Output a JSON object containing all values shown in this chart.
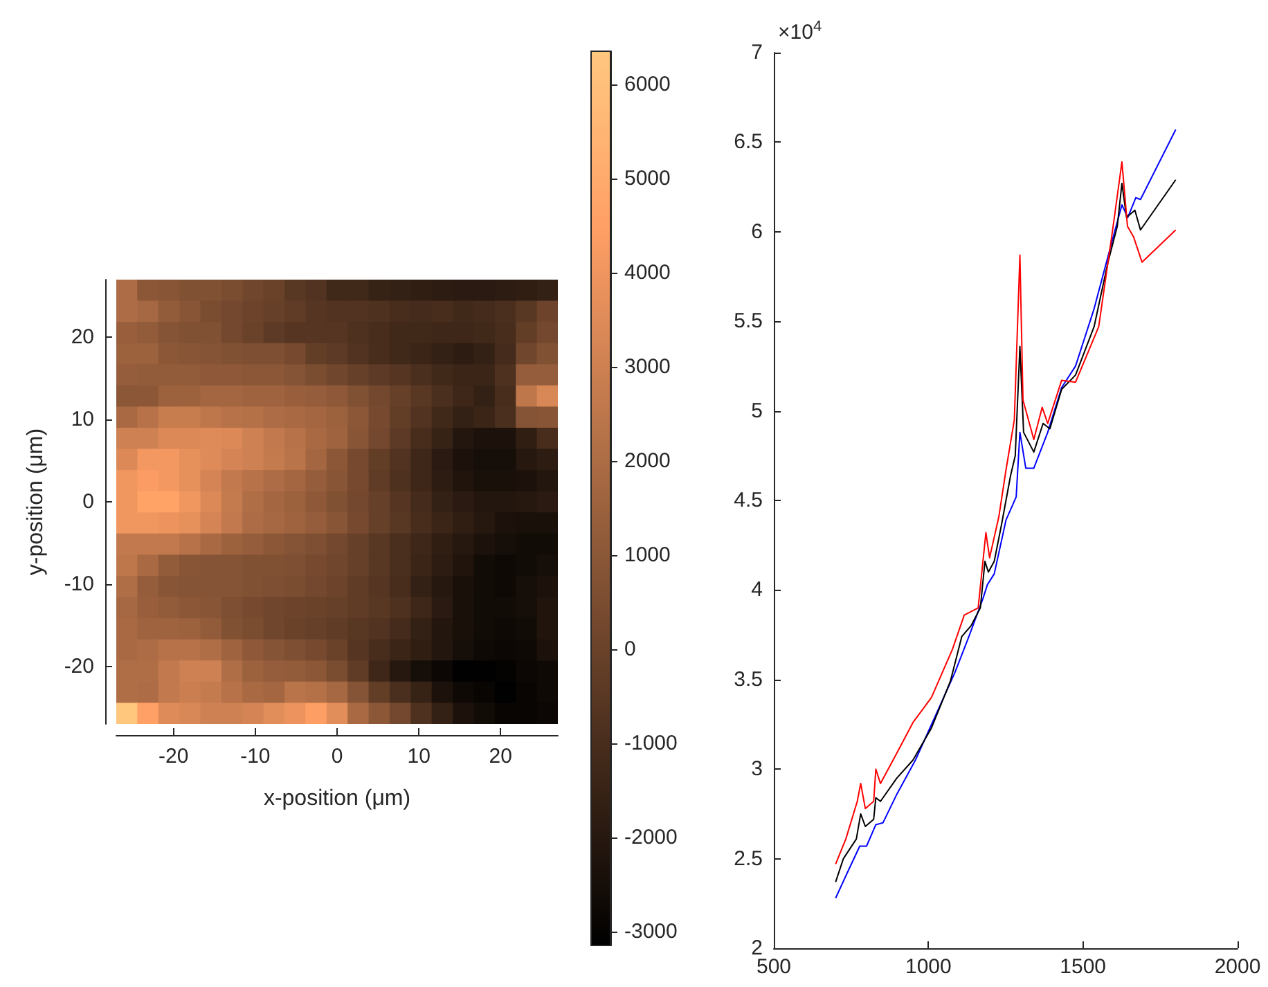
{
  "chart_data": [
    {
      "type": "heatmap",
      "xlabel": "x-position (μm)",
      "ylabel": "y-position (μm)",
      "xlim": [
        -27,
        27
      ],
      "ylim": [
        -27,
        27
      ],
      "xticks": [
        -20,
        -10,
        0,
        10,
        20
      ],
      "yticks": [
        -20,
        -10,
        0,
        10,
        20
      ],
      "clim": [
        -3150,
        6350
      ],
      "cticks": [
        -3000,
        -2000,
        -1000,
        0,
        1000,
        2000,
        3000,
        4000,
        5000,
        6000
      ],
      "cells": [
        [
          2000,
          1000,
          900,
          700,
          700,
          500,
          200,
          0,
          -500,
          -700,
          -1200,
          -1200,
          -1500,
          -1600,
          -1700,
          -1800,
          -1900,
          -1900,
          -1800,
          -1700,
          -1600
        ],
        [
          2000,
          1800,
          1200,
          900,
          500,
          300,
          100,
          -100,
          -300,
          -600,
          -700,
          -700,
          -800,
          -1000,
          -1100,
          -1000,
          -1200,
          -1100,
          -900,
          -500,
          100
        ],
        [
          1400,
          1200,
          800,
          700,
          700,
          300,
          0,
          -400,
          -600,
          -600,
          -600,
          -800,
          -1000,
          -1200,
          -1200,
          -1300,
          -1300,
          -1200,
          -1000,
          -200,
          300
        ],
        [
          1500,
          1500,
          1000,
          900,
          800,
          700,
          600,
          600,
          400,
          -200,
          -400,
          -700,
          -1000,
          -1200,
          -1400,
          -1600,
          -1800,
          -1600,
          -1100,
          200,
          700
        ],
        [
          1300,
          1200,
          1200,
          1200,
          1100,
          1100,
          1000,
          1000,
          800,
          500,
          200,
          -100,
          -400,
          -600,
          -900,
          -1200,
          -1400,
          -1400,
          -800,
          1300,
          1300
        ],
        [
          1000,
          1000,
          1500,
          1500,
          1700,
          1700,
          1600,
          1600,
          1400,
          1300,
          1100,
          700,
          300,
          -100,
          -500,
          -900,
          -1300,
          -1600,
          -1000,
          2500,
          3300
        ],
        [
          1900,
          2300,
          2800,
          2800,
          2500,
          2300,
          2200,
          2000,
          1900,
          1700,
          1500,
          1000,
          400,
          -200,
          -700,
          -1200,
          -1600,
          -1400,
          -900,
          800,
          900
        ],
        [
          3000,
          3000,
          3400,
          3400,
          3500,
          3400,
          3000,
          2600,
          2300,
          1900,
          1600,
          900,
          300,
          -400,
          -1000,
          -1500,
          -2100,
          -2300,
          -2300,
          -1700,
          -1000
        ],
        [
          3400,
          4100,
          4100,
          3700,
          3500,
          3200,
          3000,
          2700,
          2400,
          1700,
          1000,
          400,
          -200,
          -700,
          -1300,
          -1900,
          -2300,
          -2500,
          -2500,
          -2000,
          -1800
        ],
        [
          4000,
          4300,
          4100,
          3700,
          3200,
          2600,
          2300,
          2000,
          1700,
          1300,
          900,
          400,
          -300,
          -800,
          -1300,
          -1800,
          -2200,
          -2400,
          -2400,
          -2300,
          -2100
        ],
        [
          4000,
          4600,
          4600,
          4000,
          3400,
          2700,
          2100,
          1700,
          1500,
          1100,
          700,
          300,
          -100,
          -600,
          -1100,
          -1600,
          -1900,
          -2100,
          -2100,
          -2000,
          -1900
        ],
        [
          4000,
          4000,
          3900,
          3700,
          3200,
          2600,
          2000,
          1800,
          1600,
          1300,
          900,
          400,
          -100,
          -500,
          -1000,
          -1400,
          -1700,
          -2000,
          -2300,
          -2400,
          -2400
        ],
        [
          2600,
          2600,
          2600,
          2300,
          1900,
          1500,
          1300,
          1000,
          800,
          600,
          300,
          -100,
          -500,
          -900,
          -1300,
          -1700,
          -2000,
          -2300,
          -2500,
          -2600,
          -2600
        ],
        [
          2500,
          1900,
          1200,
          900,
          800,
          800,
          700,
          700,
          600,
          400,
          200,
          -100,
          -500,
          -900,
          -1400,
          -1800,
          -2200,
          -2600,
          -2700,
          -2600,
          -2500
        ],
        [
          2100,
          1300,
          900,
          800,
          800,
          800,
          700,
          600,
          500,
          300,
          100,
          -300,
          -600,
          -1000,
          -1600,
          -2000,
          -2400,
          -2600,
          -2700,
          -2500,
          -2300
        ],
        [
          1800,
          1400,
          1200,
          1000,
          900,
          600,
          400,
          200,
          100,
          0,
          -100,
          -300,
          -500,
          -800,
          -1300,
          -1900,
          -2400,
          -2600,
          -2600,
          -2500,
          -2200
        ],
        [
          1900,
          1600,
          1600,
          1500,
          1200,
          700,
          500,
          200,
          0,
          -100,
          -300,
          -500,
          -700,
          -1100,
          -1600,
          -2100,
          -2400,
          -2600,
          -2700,
          -2600,
          -2200
        ],
        [
          1900,
          2000,
          2300,
          2300,
          2100,
          1600,
          1100,
          800,
          600,
          400,
          0,
          -600,
          -1000,
          -1400,
          -1700,
          -2100,
          -2500,
          -2700,
          -2800,
          -2700,
          -2300
        ],
        [
          2100,
          2100,
          2600,
          3000,
          3000,
          2100,
          1500,
          1300,
          1200,
          1000,
          500,
          -300,
          -1300,
          -2000,
          -2500,
          -2800,
          -3100,
          -3100,
          -3000,
          -2800,
          -2700
        ],
        [
          2100,
          2000,
          2600,
          2900,
          2700,
          2300,
          1900,
          1700,
          2400,
          2200,
          1800,
          800,
          -200,
          -900,
          -1500,
          -2300,
          -2700,
          -2900,
          -3100,
          -2900,
          -2700
        ],
        [
          6300,
          4500,
          3500,
          3300,
          3000,
          3000,
          3200,
          3600,
          3900,
          4400,
          3600,
          1900,
          1000,
          300,
          -800,
          -1600,
          -2300,
          -2600,
          -2900,
          -2900,
          -2800
        ]
      ]
    },
    {
      "type": "line",
      "xlim": [
        500,
        2000
      ],
      "xticks": [
        500,
        1000,
        1500,
        2000
      ],
      "ylim": [
        2,
        7
      ],
      "yticks": [
        2,
        2.5,
        3,
        3.5,
        4,
        4.5,
        5,
        5.5,
        6,
        6.5,
        7
      ],
      "annotations": [
        "×10$^{4}$"
      ],
      "series": [
        {
          "color": "#0000ff",
          "x": [
            700,
            740,
            778,
            800,
            830,
            853,
            898,
            958,
            1026,
            1086,
            1131,
            1176,
            1191,
            1213,
            1251,
            1284,
            1296,
            1315,
            1341,
            1386,
            1431,
            1476,
            1536,
            1596,
            1626,
            1645,
            1671,
            1686,
            1800
          ],
          "values": [
            2.28,
            2.43,
            2.57,
            2.57,
            2.69,
            2.7,
            2.86,
            3.05,
            3.31,
            3.54,
            3.74,
            3.95,
            4.03,
            4.09,
            4.39,
            4.52,
            4.88,
            4.68,
            4.68,
            4.88,
            5.13,
            5.25,
            5.57,
            5.96,
            6.15,
            6.08,
            6.19,
            6.18,
            6.57
          ]
        },
        {
          "color": "#000000",
          "x": [
            700,
            725,
            767,
            781,
            796,
            823,
            830,
            845,
            898,
            950,
            1010,
            1071,
            1108,
            1138,
            1168,
            1183,
            1194,
            1213,
            1236,
            1266,
            1281,
            1296,
            1308,
            1341,
            1371,
            1393,
            1431,
            1476,
            1536,
            1581,
            1611,
            1626,
            1641,
            1668,
            1686,
            1800
          ],
          "values": [
            2.37,
            2.5,
            2.61,
            2.75,
            2.68,
            2.72,
            2.84,
            2.82,
            2.95,
            3.05,
            3.23,
            3.49,
            3.74,
            3.8,
            3.9,
            4.16,
            4.1,
            4.16,
            4.36,
            4.64,
            4.75,
            5.36,
            4.88,
            4.77,
            4.93,
            4.9,
            5.12,
            5.2,
            5.47,
            5.83,
            6.03,
            6.27,
            6.08,
            6.12,
            6.01,
            6.29
          ]
        },
        {
          "color": "#ff0000",
          "x": [
            700,
            733,
            770,
            781,
            796,
            823,
            830,
            845,
            898,
            950,
            1010,
            1078,
            1116,
            1161,
            1186,
            1198,
            1228,
            1251,
            1278,
            1296,
            1306,
            1341,
            1368,
            1386,
            1431,
            1476,
            1551,
            1596,
            1626,
            1644,
            1664,
            1691,
            1800
          ],
          "values": [
            2.47,
            2.61,
            2.82,
            2.92,
            2.78,
            2.82,
            3.0,
            2.92,
            3.09,
            3.26,
            3.4,
            3.67,
            3.86,
            3.9,
            4.32,
            4.18,
            4.41,
            4.67,
            4.95,
            5.87,
            5.06,
            4.84,
            5.02,
            4.93,
            5.17,
            5.16,
            5.47,
            6.01,
            6.39,
            6.03,
            5.97,
            5.83,
            6.01
          ]
        }
      ]
    }
  ]
}
